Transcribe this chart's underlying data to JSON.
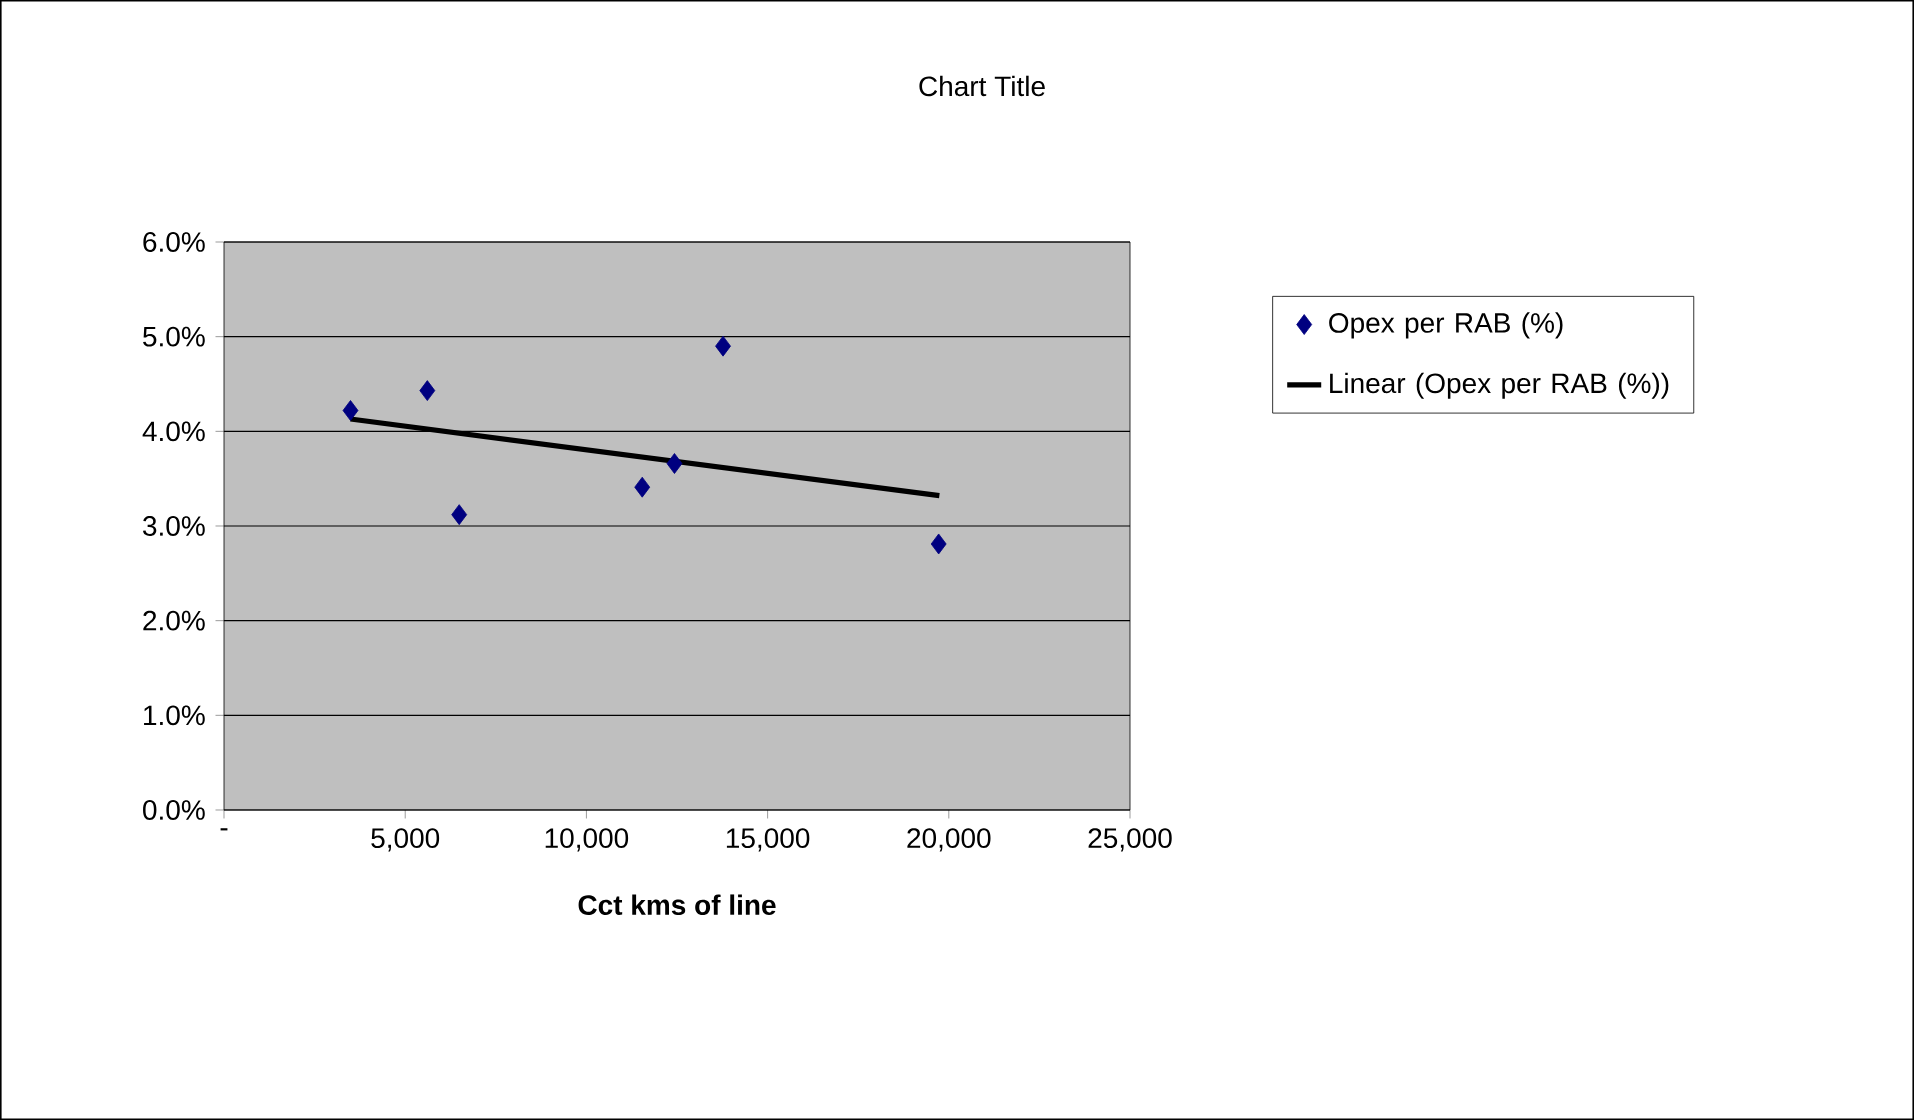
{
  "chart_data": {
    "type": "scatter",
    "title": "Chart Title",
    "xlabel": "Cct kms of line",
    "series": [
      {
        "name": "Opex per RAB (%)",
        "color": "#000080",
        "marker": "diamond",
        "x": [
          3490,
          5610,
          6490,
          11540,
          12430,
          13770,
          19720
        ],
        "values": [
          4.22,
          4.43,
          3.12,
          3.41,
          3.66,
          4.9,
          2.81
        ]
      },
      {
        "name": "Linear (Opex per RAB (%))",
        "type": "line",
        "color": "#000000",
        "x": [
          3490,
          19740
        ],
        "values": [
          4.13,
          3.32
        ]
      }
    ],
    "xlim": [
      0,
      25000
    ],
    "xticks": [
      {
        "value": 0,
        "label": "-"
      },
      {
        "value": 5000,
        "label": "5,000"
      },
      {
        "value": 10000,
        "label": "10,000"
      },
      {
        "value": 15000,
        "label": "15,000"
      },
      {
        "value": 20000,
        "label": "20,000"
      },
      {
        "value": 25000,
        "label": "25,000"
      }
    ],
    "ylim": [
      0,
      6
    ],
    "yticks": [
      {
        "value": 0,
        "label": "0.0%"
      },
      {
        "value": 1,
        "label": "1.0%"
      },
      {
        "value": 2,
        "label": "2.0%"
      },
      {
        "value": 3,
        "label": "3.0%"
      },
      {
        "value": 4,
        "label": "4.0%"
      },
      {
        "value": 5,
        "label": "5.0%"
      },
      {
        "value": 6,
        "label": "6.0%"
      }
    ],
    "grid": "y",
    "legend": "right"
  }
}
